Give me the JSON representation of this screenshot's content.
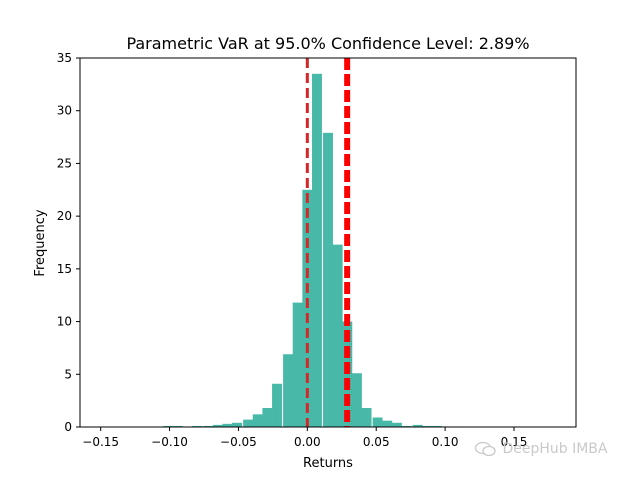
{
  "chart_data": {
    "type": "bar",
    "title": "Parametric VaR at 95.0% Confidence Level: 2.89%",
    "xlabel": "Returns",
    "ylabel": "Frequency",
    "xlim": [
      -0.165,
      0.195
    ],
    "ylim": [
      0,
      35
    ],
    "xticks": [
      -0.15,
      -0.1,
      -0.05,
      0.0,
      0.05,
      0.1,
      0.15
    ],
    "xtick_labels": [
      "−0.15",
      "−0.10",
      "−0.05",
      "0.00",
      "0.05",
      "0.10",
      "0.15"
    ],
    "yticks": [
      0,
      5,
      10,
      15,
      20,
      25,
      30,
      35
    ],
    "ytick_labels": [
      "0",
      "5",
      "10",
      "15",
      "20",
      "25",
      "30",
      "35"
    ],
    "bin_width": 0.0072,
    "bins": [
      {
        "x": -0.101,
        "y": 0.1
      },
      {
        "x": -0.094,
        "y": 0.1
      },
      {
        "x": -0.087,
        "y": 0.05
      },
      {
        "x": -0.08,
        "y": 0.1
      },
      {
        "x": -0.072,
        "y": 0.1
      },
      {
        "x": -0.065,
        "y": 0.2
      },
      {
        "x": -0.058,
        "y": 0.3
      },
      {
        "x": -0.051,
        "y": 0.4
      },
      {
        "x": -0.043,
        "y": 0.7
      },
      {
        "x": -0.036,
        "y": 1.2
      },
      {
        "x": -0.029,
        "y": 1.8
      },
      {
        "x": -0.022,
        "y": 4.1
      },
      {
        "x": -0.014,
        "y": 6.9
      },
      {
        "x": -0.007,
        "y": 11.8
      },
      {
        "x": 0.0,
        "y": 22.5
      },
      {
        "x": 0.007,
        "y": 33.5
      },
      {
        "x": 0.015,
        "y": 27.9
      },
      {
        "x": 0.022,
        "y": 17.3
      },
      {
        "x": 0.029,
        "y": 10.0
      },
      {
        "x": 0.036,
        "y": 5.1
      },
      {
        "x": 0.043,
        "y": 1.8
      },
      {
        "x": 0.051,
        "y": 0.9
      },
      {
        "x": 0.058,
        "y": 0.6
      },
      {
        "x": 0.065,
        "y": 0.4
      },
      {
        "x": 0.072,
        "y": 0.1
      },
      {
        "x": 0.08,
        "y": 0.2
      },
      {
        "x": 0.087,
        "y": 0.1
      },
      {
        "x": 0.094,
        "y": 0.1
      },
      {
        "x": 0.101,
        "y": 0.05
      },
      {
        "x": 0.109,
        "y": 0.05
      }
    ],
    "vlines": [
      {
        "x": 0.0,
        "style": "dashed",
        "color": "#d62728"
      },
      {
        "x": 0.0289,
        "style": "dashed-thick",
        "color": "#ff0000"
      }
    ],
    "bar_color": "#48b9a8",
    "grid": false
  },
  "watermark": {
    "text": "DeepHub IMBA",
    "icon": "wechat-icon"
  }
}
